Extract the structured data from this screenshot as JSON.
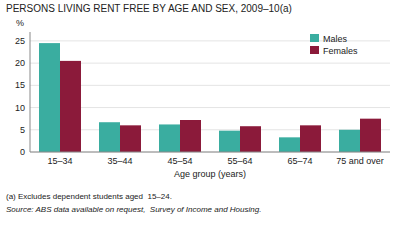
{
  "chart_data": {
    "type": "bar",
    "title": "PERSONS LIVING RENT FREE BY AGE AND SEX, 2009–10(a)",
    "categories": [
      "15–34",
      "35–44",
      "45–54",
      "55–64",
      "65–74",
      "75 and over"
    ],
    "series": [
      {
        "name": "Males",
        "color": "#3aada0",
        "values": [
          24.5,
          6.7,
          6.2,
          4.8,
          3.3,
          5.0
        ]
      },
      {
        "name": "Females",
        "color": "#8b1a3a",
        "values": [
          20.5,
          6.0,
          7.2,
          5.8,
          6.0,
          7.5
        ]
      }
    ],
    "ylim": [
      0,
      27
    ],
    "yticks": [
      0,
      5,
      10,
      15,
      20,
      25
    ],
    "ylabel": "%",
    "xlabel": "Age group (years)",
    "annotations": [
      "(a) Excludes dependent students aged  15–24.",
      "Source: ABS data available on request,  Survey of Income and Housing."
    ],
    "legend": "upper right",
    "grid": true
  }
}
